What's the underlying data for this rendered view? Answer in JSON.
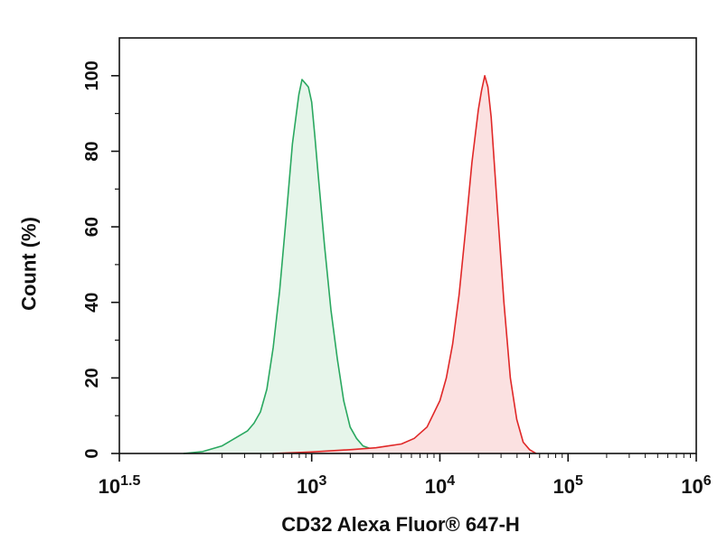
{
  "chart_data": {
    "type": "area",
    "title": "",
    "xlabel": "CD32 Alexa Fluor® 647-H",
    "ylabel": "Count (%)",
    "xscale": "log",
    "xlim": [
      31.6,
      1000000
    ],
    "ylim": [
      0,
      110
    ],
    "grid": false,
    "legend": "none",
    "x_ticks": [
      {
        "value": 31.6,
        "base": "10",
        "exp": "1.5"
      },
      {
        "value": 1000,
        "base": "10",
        "exp": "3"
      },
      {
        "value": 10000,
        "base": "10",
        "exp": "4"
      },
      {
        "value": 100000,
        "base": "10",
        "exp": "5"
      },
      {
        "value": 1000000,
        "base": "10",
        "exp": "6"
      }
    ],
    "y_ticks": [
      "0",
      "20",
      "40",
      "60",
      "80",
      "100"
    ],
    "series": [
      {
        "color": "#2aa860",
        "fill": "#e6f5ea",
        "x": [
          100,
          141,
          200,
          251,
          316,
          355,
          398,
          447,
          501,
          562,
          631,
          708,
          794,
          841,
          891,
          944,
          1000,
          1059,
          1122,
          1259,
          1413,
          1585,
          1778,
          1995,
          2239,
          2512,
          3162,
          3981,
          5012
        ],
        "y": [
          0,
          0.5,
          2,
          4,
          6,
          8,
          11,
          17,
          28,
          43,
          62,
          82,
          95,
          99,
          98,
          97,
          93,
          84,
          74,
          55,
          38,
          25,
          14,
          7,
          4,
          2,
          0.8,
          0.3,
          0
        ]
      },
      {
        "color": "#e02828",
        "fill": "#fbe1e1",
        "x": [
          501,
          1000,
          1995,
          3162,
          3981,
          5012,
          6310,
          7943,
          10000,
          11220,
          12589,
          14125,
          15849,
          17783,
          19953,
          21135,
          22387,
          23714,
          25119,
          28184,
          31623,
          35481,
          39811,
          44668,
          50119,
          56234
        ],
        "y": [
          0,
          0.4,
          1,
          1.5,
          2,
          2.5,
          4,
          7,
          14,
          20,
          29,
          42,
          59,
          77,
          91,
          96,
          100,
          97,
          89,
          64,
          40,
          20,
          9,
          3,
          1,
          0
        ]
      }
    ]
  }
}
